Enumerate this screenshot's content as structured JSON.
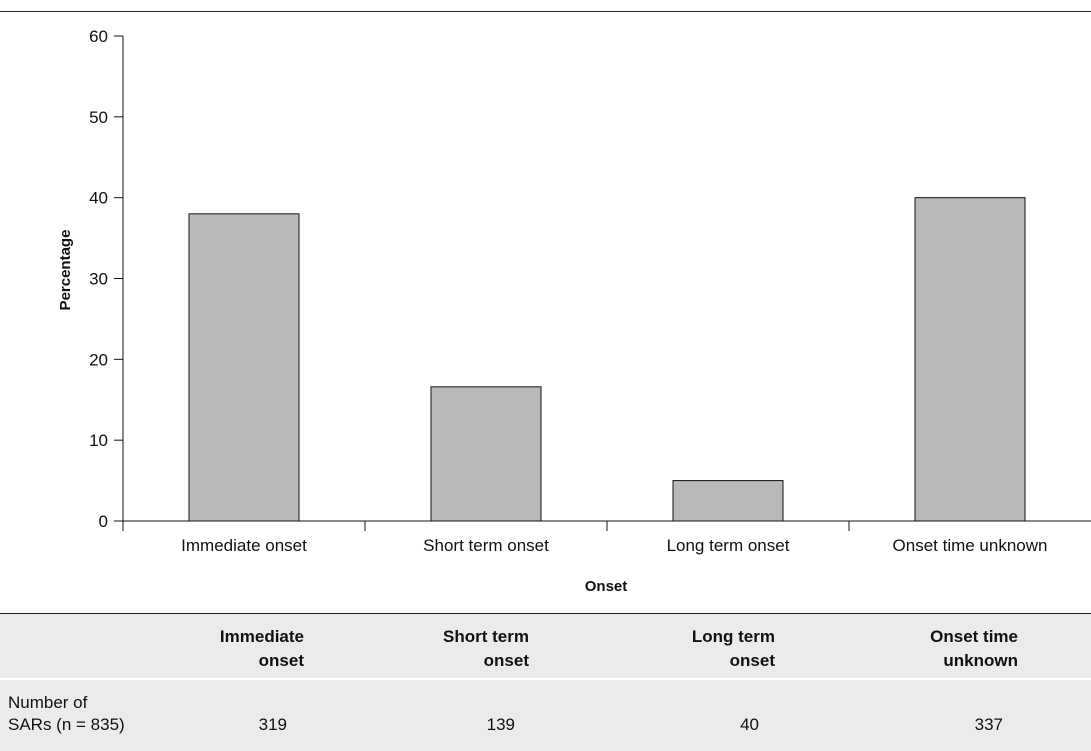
{
  "chart_data": {
    "type": "bar",
    "categories": [
      "Immediate onset",
      "Short term onset",
      "Long term onset",
      "Onset time unknown"
    ],
    "values": [
      38,
      16.6,
      5,
      40
    ],
    "ylim": [
      0,
      60
    ],
    "yticks": [
      0,
      10,
      20,
      30,
      40,
      50,
      60
    ],
    "xlabel": "Onset",
    "ylabel": "Percentage",
    "title": "",
    "grid": false,
    "colors": {
      "bar_fill": "#b9b9b9",
      "bar_stroke": "#111111",
      "axis": "#111111"
    }
  },
  "table": {
    "headers": [
      [
        "Immediate",
        "onset"
      ],
      [
        "Short term",
        "onset"
      ],
      [
        "Long term",
        "onset"
      ],
      [
        "Onset time",
        "unknown"
      ]
    ],
    "row_label": [
      "Number of",
      "SARs (n = 835)"
    ],
    "values": [
      "319",
      "139",
      "40",
      "337"
    ],
    "background": "#ebebeb"
  }
}
